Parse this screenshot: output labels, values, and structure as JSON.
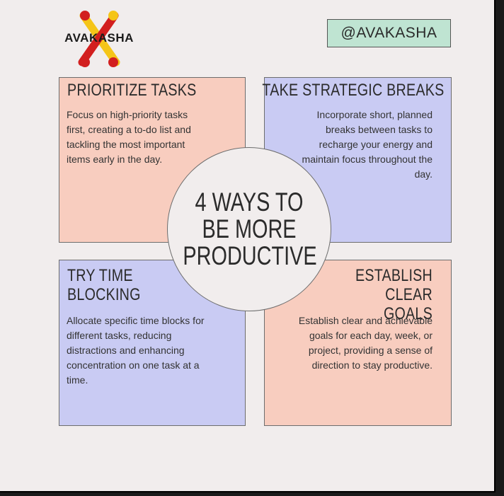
{
  "brand": {
    "logo_text": "AVAKASHA",
    "handle": "@AVAKASHA"
  },
  "center": {
    "title": "4 WAYS TO BE MORE PRODUCTIVE"
  },
  "cards": [
    {
      "title": "PRIORITIZE TASKS",
      "body": "Focus on high-priority tasks first, creating a to-do list and tackling the most important items early in the day."
    },
    {
      "title": "TAKE STRATEGIC BREAKS",
      "body": "Incorporate short, planned breaks between tasks to recharge your energy and maintain focus throughout the day."
    },
    {
      "title": "TRY TIME BLOCKING",
      "body": "Allocate specific time blocks for different tasks, reducing distractions and enhancing concentration on one task at a time."
    },
    {
      "title": "ESTABLISH CLEAR GOALS",
      "body": "Establish clear and achievable goals for each day, week, or project, providing a sense of direction to stay productive."
    }
  ],
  "colors": {
    "background": "#f1eded",
    "pink": "#f8cdbf",
    "lavender": "#c9cbf3",
    "mint": "#bfe4d2",
    "logo_red": "#d21f1f",
    "logo_yellow": "#f5c518"
  }
}
